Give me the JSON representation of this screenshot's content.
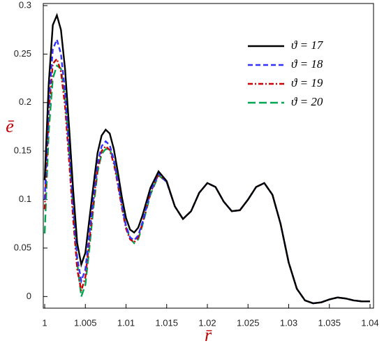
{
  "chart_data": {
    "type": "line",
    "x_label": "r̄",
    "y_label": "ē",
    "xlim": [
      1,
      1.04
    ],
    "ylim": [
      -0.012,
      0.3
    ],
    "xticks": [
      1,
      1.005,
      1.01,
      1.015,
      1.02,
      1.025,
      1.03,
      1.035,
      1.04
    ],
    "yticks": [
      0,
      0.05,
      0.1,
      0.15,
      0.2,
      0.25,
      0.3
    ],
    "legend": "upper right",
    "x": [
      1,
      1.0005,
      1.001,
      1.0015,
      1.002,
      1.0025,
      1.003,
      1.0035,
      1.004,
      1.0045,
      1.005,
      1.0055,
      1.006,
      1.0065,
      1.007,
      1.0075,
      1.008,
      1.0085,
      1.009,
      1.0095,
      1.01,
      1.0105,
      1.011,
      1.0115,
      1.012,
      1.013,
      1.014,
      1.015,
      1.016,
      1.017,
      1.018,
      1.019,
      1.02,
      1.021,
      1.022,
      1.023,
      1.024,
      1.025,
      1.026,
      1.027,
      1.028,
      1.029,
      1.03,
      1.031,
      1.032,
      1.033,
      1.034,
      1.035,
      1.036,
      1.037,
      1.038,
      1.039,
      1.04
    ],
    "series": [
      {
        "name": "ϑ = 17",
        "color": "#000000",
        "style": "solid",
        "values": [
          0.12,
          0.22,
          0.28,
          0.29,
          0.275,
          0.235,
          0.175,
          0.11,
          0.055,
          0.033,
          0.045,
          0.08,
          0.115,
          0.148,
          0.166,
          0.172,
          0.168,
          0.152,
          0.128,
          0.102,
          0.081,
          0.069,
          0.066,
          0.071,
          0.083,
          0.112,
          0.129,
          0.119,
          0.093,
          0.08,
          0.088,
          0.107,
          0.117,
          0.113,
          0.098,
          0.088,
          0.089,
          0.1,
          0.113,
          0.117,
          0.105,
          0.075,
          0.035,
          0.008,
          -0.004,
          -0.007,
          -0.006,
          -0.003,
          -0.001,
          -0.002,
          -0.004,
          -0.005,
          -0.005
        ]
      },
      {
        "name": "ϑ = 18",
        "color": "#3333ff",
        "style": "dashed",
        "values": [
          0.1,
          0.2,
          0.255,
          0.265,
          0.25,
          0.212,
          0.155,
          0.093,
          0.04,
          0.016,
          0.028,
          0.065,
          0.103,
          0.137,
          0.155,
          0.16,
          0.156,
          0.141,
          0.118,
          0.094,
          0.073,
          0.061,
          0.058,
          0.063,
          0.076,
          0.108,
          0.127,
          0.118,
          0.093,
          0.08,
          0.088,
          0.107,
          0.117,
          0.113,
          0.098,
          0.088,
          0.089,
          0.1,
          0.113,
          0.117,
          0.105,
          0.075,
          0.035,
          0.008,
          -0.004,
          -0.007,
          -0.006,
          -0.003,
          -0.001,
          -0.002,
          -0.004,
          -0.005,
          -0.005
        ]
      },
      {
        "name": "ϑ = 19",
        "color": "#cc0000",
        "style": "dashdot",
        "values": [
          0.09,
          0.19,
          0.24,
          0.245,
          0.232,
          0.196,
          0.14,
          0.08,
          0.028,
          0.006,
          0.02,
          0.058,
          0.098,
          0.132,
          0.15,
          0.155,
          0.151,
          0.137,
          0.115,
          0.091,
          0.07,
          0.059,
          0.056,
          0.061,
          0.075,
          0.107,
          0.126,
          0.118,
          0.093,
          0.08,
          0.088,
          0.107,
          0.117,
          0.113,
          0.098,
          0.088,
          0.089,
          0.1,
          0.113,
          0.117,
          0.105,
          0.075,
          0.035,
          0.008,
          -0.004,
          -0.007,
          -0.006,
          -0.003,
          -0.001,
          -0.002,
          -0.004,
          -0.005,
          -0.005
        ]
      },
      {
        "name": "ϑ = 20",
        "color": "#00a651",
        "style": "longdash",
        "values": [
          0.065,
          0.17,
          0.225,
          0.238,
          0.235,
          0.205,
          0.152,
          0.09,
          0.035,
          0.0,
          0.012,
          0.05,
          0.092,
          0.128,
          0.147,
          0.152,
          0.152,
          0.14,
          0.118,
          0.094,
          0.072,
          0.06,
          0.055,
          0.059,
          0.073,
          0.105,
          0.125,
          0.118,
          0.093,
          0.08,
          0.088,
          0.107,
          0.117,
          0.113,
          0.098,
          0.088,
          0.089,
          0.1,
          0.113,
          0.117,
          0.105,
          0.075,
          0.035,
          0.008,
          -0.004,
          -0.007,
          -0.006,
          -0.003,
          -0.001,
          -0.002,
          -0.004,
          -0.005,
          -0.005
        ]
      }
    ]
  }
}
